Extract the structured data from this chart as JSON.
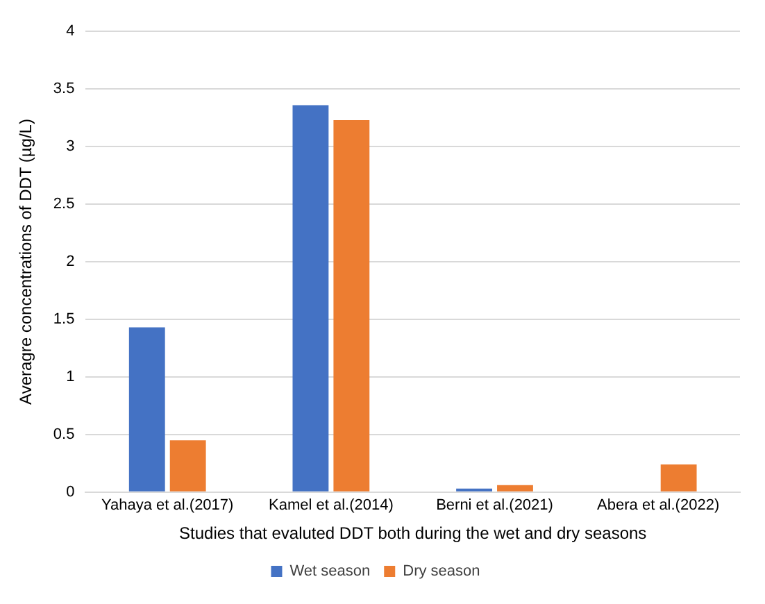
{
  "chart_data": {
    "type": "bar",
    "xlabel": "Studies that evaluted DDT both during the wet and dry seasons",
    "ylabel": "Averagre concentrations of DDT (µg/L)",
    "categories": [
      "Yahaya et al.(2017)",
      "Kamel et al.(2014)",
      "Berni et al.(2021)",
      "Abera et al.(2022)"
    ],
    "series": [
      {
        "name": "Wet season",
        "color": "#4472c4",
        "values": [
          1.43,
          3.36,
          0.03,
          null
        ]
      },
      {
        "name": "Dry season",
        "color": "#ed7d31",
        "values": [
          0.45,
          3.23,
          0.06,
          0.24
        ]
      }
    ],
    "ylim": [
      0,
      4
    ],
    "yticks": [
      0,
      0.5,
      1,
      1.5,
      2,
      2.5,
      3,
      3.5,
      4
    ],
    "grid": "y",
    "legend": "bottom"
  }
}
